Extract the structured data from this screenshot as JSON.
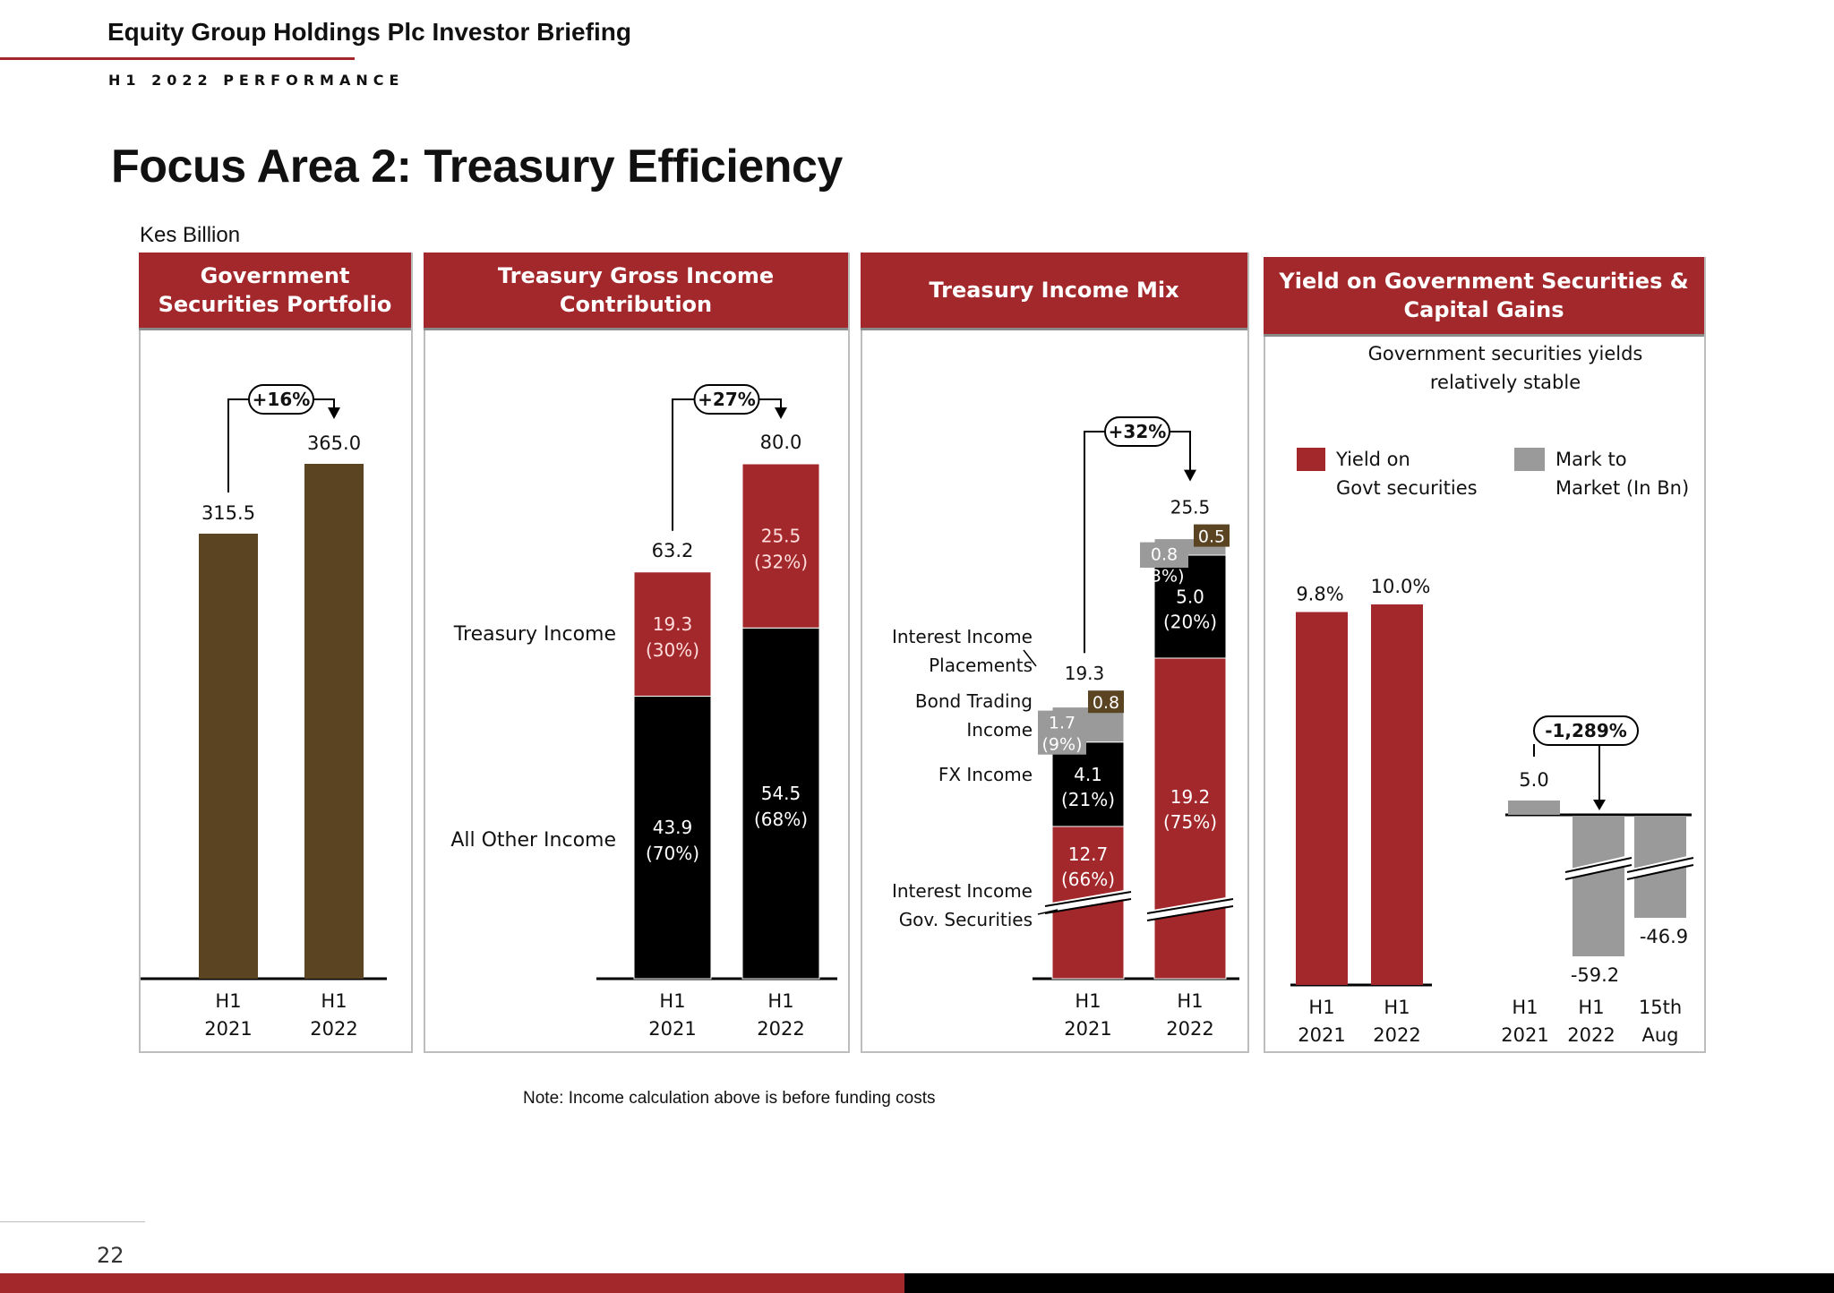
{
  "header": {
    "title": "Equity Group Holdings Plc Investor Briefing",
    "subtitle": "H1 2022 PERFORMANCE"
  },
  "page_title": "Focus Area 2: Treasury Efficiency",
  "units": "Kes Billion",
  "note": "Note: Income calculation above is before funding costs",
  "page_number": "22",
  "colors": {
    "red": "#a3282b",
    "brown": "#5a4422",
    "black": "#000000",
    "grey": "#9a9a9a"
  },
  "panels": {
    "p1": {
      "title": "Government Securities Portfolio",
      "growth": "+16%"
    },
    "p2": {
      "title": "Treasury Gross Income Contribution",
      "growth": "+27%",
      "label_treasury": "Treasury Income",
      "label_other": "All Other Income"
    },
    "p3": {
      "title": "Treasury Income Mix",
      "growth": "+32%",
      "label_placements": "Interest Income Placements",
      "label_bond": "Bond Trading Income",
      "label_fx": "FX Income",
      "label_govsec": "Interest Income Gov. Securities"
    },
    "p4": {
      "title": "Yield on Government Securities & Capital Gains",
      "subtitle": "Government securities yields relatively stable",
      "legend_yield": "Yield on Govt securities",
      "legend_mtm": "Mark to Market (In Bn)",
      "growth": "-1,289%"
    }
  },
  "chart_data": [
    {
      "type": "bar",
      "title": "Government Securities Portfolio",
      "categories": [
        "H1 2021",
        "H1 2022"
      ],
      "values": [
        315.5,
        365.0
      ],
      "value_labels": [
        "315.5",
        "365.0"
      ],
      "ylim": [
        0,
        400
      ],
      "annotation": "+16%"
    },
    {
      "type": "bar",
      "stacked": true,
      "title": "Treasury Gross Income Contribution",
      "categories": [
        "H1 2021",
        "H1 2022"
      ],
      "totals": [
        63.2,
        80.0
      ],
      "total_labels": [
        "63.2",
        "80.0"
      ],
      "series": [
        {
          "name": "All Other Income",
          "values": [
            43.9,
            54.5
          ],
          "labels": [
            "43.9",
            "54.5"
          ],
          "pct": [
            "(70%)",
            "(68%)"
          ]
        },
        {
          "name": "Treasury Income",
          "values": [
            19.3,
            25.5
          ],
          "labels": [
            "19.3",
            "25.5"
          ],
          "pct": [
            "(30%)",
            "(32%)"
          ]
        }
      ],
      "ylim": [
        0,
        90
      ],
      "annotation": "+27%"
    },
    {
      "type": "bar",
      "stacked": true,
      "title": "Treasury Income Mix",
      "categories": [
        "H1 2021",
        "H1 2022"
      ],
      "totals": [
        19.3,
        25.5
      ],
      "total_labels": [
        "19.3",
        "25.5"
      ],
      "series": [
        {
          "name": "Interest Income Gov. Securities",
          "values": [
            12.7,
            19.2
          ],
          "labels": [
            "12.7",
            "19.2"
          ],
          "pct": [
            "(66%)",
            "(75%)"
          ]
        },
        {
          "name": "FX Income",
          "values": [
            4.1,
            5.0
          ],
          "labels": [
            "4.1",
            "5.0"
          ],
          "pct": [
            "(21%)",
            "(20%)"
          ]
        },
        {
          "name": "Bond Trading Income",
          "values": [
            1.7,
            0.8
          ],
          "labels": [
            "1.7",
            "0.8"
          ],
          "pct": [
            "(9%)",
            "(3%)"
          ]
        },
        {
          "name": "Interest Income Placements",
          "values": [
            0.8,
            0.5
          ],
          "labels": [
            "0.8",
            "0.5"
          ],
          "pct": [
            "",
            ""
          ]
        }
      ],
      "axis_break": true,
      "annotation": "+32%"
    },
    {
      "type": "bar",
      "title": "Yield on Govt securities",
      "categories": [
        "H1 2021",
        "H1 2022"
      ],
      "values": [
        9.8,
        10.0
      ],
      "value_labels": [
        "9.8%",
        "10.0%"
      ]
    },
    {
      "type": "bar",
      "title": "Mark to Market (In Bn)",
      "categories": [
        "H1 2021",
        "H1 2022",
        "15th Aug"
      ],
      "values": [
        5.0,
        -59.2,
        -46.9
      ],
      "value_labels": [
        "5.0",
        "-59.2",
        "-46.9"
      ],
      "axis_break": true,
      "annotation": "-1,289%"
    }
  ]
}
